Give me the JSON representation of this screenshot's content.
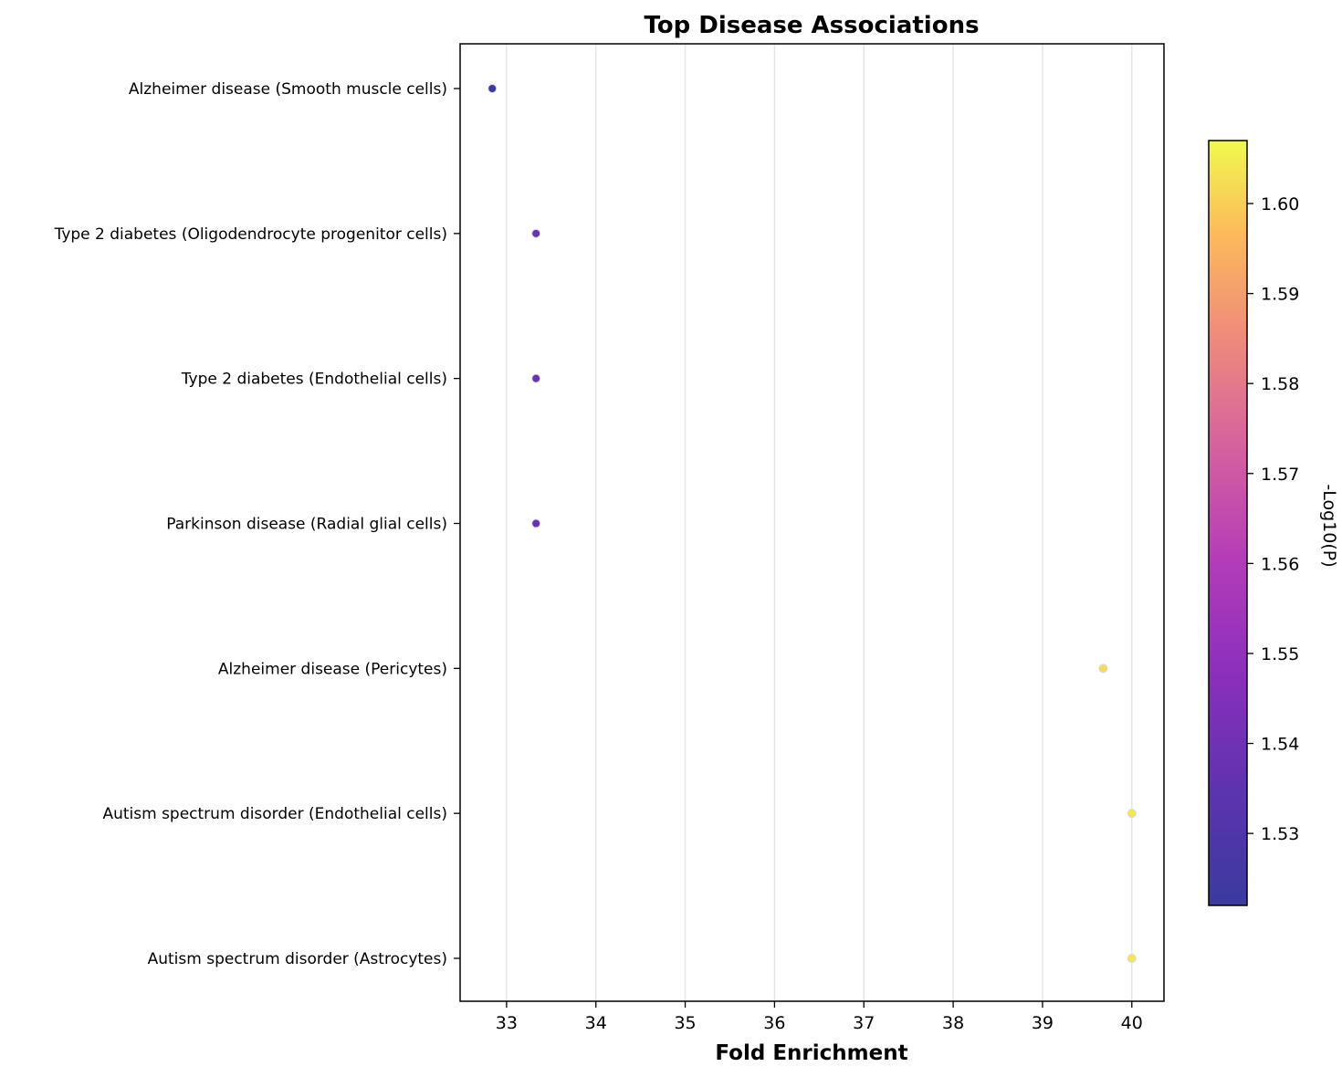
{
  "chart_data": {
    "type": "scatter",
    "title": "Top Disease Associations",
    "xlabel": "Fold Enrichment",
    "ylabel": "",
    "xlim": [
      32.48,
      40.36
    ],
    "xticks": [
      33,
      34,
      35,
      36,
      37,
      38,
      39,
      40
    ],
    "grid": "vertical",
    "points": [
      {
        "label": "Alzheimer disease (Smooth muscle cells)",
        "x": 32.84,
        "p": 1.522
      },
      {
        "label": "Type 2 diabetes (Oligodendrocyte progenitor cells)",
        "x": 33.33,
        "p": 1.538
      },
      {
        "label": "Type 2 diabetes (Endothelial cells)",
        "x": 33.33,
        "p": 1.538
      },
      {
        "label": "Parkinson disease (Radial glial cells)",
        "x": 33.33,
        "p": 1.538
      },
      {
        "label": "Alzheimer disease (Pericytes)",
        "x": 39.68,
        "p": 1.602
      },
      {
        "label": "Autism spectrum disorder (Endothelial cells)",
        "x": 40.0,
        "p": 1.604
      },
      {
        "label": "Autism spectrum disorder (Astrocytes)",
        "x": 40.0,
        "p": 1.604
      }
    ],
    "colorbar": {
      "label": "-Log10(P)",
      "colormap": "plasma",
      "range": [
        1.522,
        1.607
      ],
      "ticks": [
        "1.53",
        "1.54",
        "1.55",
        "1.56",
        "1.57",
        "1.58",
        "1.59",
        "1.60"
      ],
      "tick_values": [
        1.53,
        1.54,
        1.55,
        1.56,
        1.57,
        1.58,
        1.59,
        1.6
      ]
    }
  }
}
